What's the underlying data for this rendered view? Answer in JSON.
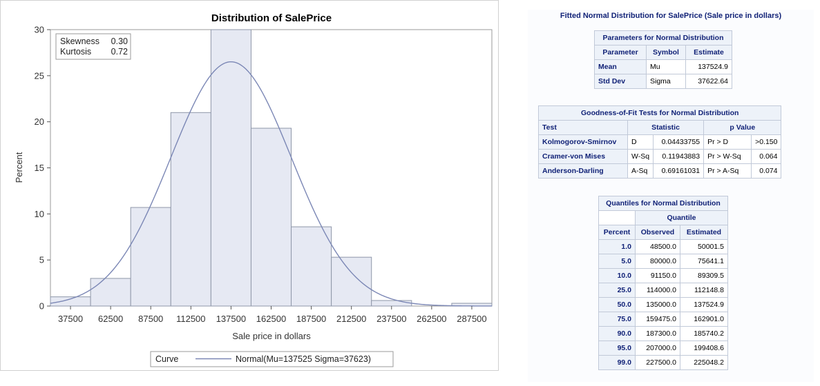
{
  "chart_data": {
    "type": "bar",
    "title": "Distribution of SalePrice",
    "xlabel": "Sale price in dollars",
    "ylabel": "Percent",
    "categories": [
      "37500",
      "62500",
      "87500",
      "112500",
      "137500",
      "162500",
      "187500",
      "212500",
      "237500",
      "262500",
      "287500"
    ],
    "x": [
      37500,
      62500,
      87500,
      112500,
      137500,
      162500,
      187500,
      212500,
      237500,
      262500,
      287500
    ],
    "bin_width": 25000,
    "values": [
      1.0,
      3.0,
      10.7,
      21.0,
      30.0,
      19.3,
      8.6,
      5.3,
      0.6,
      0.0,
      0.3
    ],
    "ylim": [
      0,
      30
    ],
    "yticks": [
      0,
      5,
      10,
      15,
      20,
      25,
      30
    ],
    "xlim": [
      25000,
      300000
    ],
    "grid": false,
    "normal_curve": {
      "mu": 137524.9,
      "sigma": 37622.64
    },
    "inset": {
      "rows": [
        {
          "label": "Skewness",
          "value": "0.30"
        },
        {
          "label": "Kurtosis",
          "value": "0.72"
        }
      ]
    },
    "legend": {
      "title": "Curve",
      "label": "Normal(Mu=137525 Sigma=37623)",
      "position": "bottom"
    },
    "colors": {
      "bar_fill": "#e6e9f3",
      "bar_stroke": "#8e96a8",
      "curve": "#7b87b5"
    }
  },
  "stats": {
    "title": "Fitted Normal Distribution for SalePrice (Sale price in dollars)",
    "parameters": {
      "caption": "Parameters for Normal Distribution",
      "headers": [
        "Parameter",
        "Symbol",
        "Estimate"
      ],
      "rows": [
        [
          "Mean",
          "Mu",
          "137524.9"
        ],
        [
          "Std Dev",
          "Sigma",
          "37622.64"
        ]
      ]
    },
    "gof": {
      "caption": "Goodness-of-Fit Tests for Normal Distribution",
      "headers": [
        "Test",
        "Statistic",
        "p Value"
      ],
      "rows": [
        [
          "Kolmogorov-Smirnov",
          "D",
          "0.04433755",
          "Pr > D",
          ">0.150"
        ],
        [
          "Cramer-von Mises",
          "W-Sq",
          "0.11943883",
          "Pr > W-Sq",
          "0.064"
        ],
        [
          "Anderson-Darling",
          "A-Sq",
          "0.69161031",
          "Pr > A-Sq",
          "0.074"
        ]
      ]
    },
    "quantiles": {
      "caption": "Quantiles for Normal Distribution",
      "group_header": "Quantile",
      "headers": [
        "Percent",
        "Observed",
        "Estimated"
      ],
      "rows": [
        [
          "1.0",
          "48500.0",
          "50001.5"
        ],
        [
          "5.0",
          "80000.0",
          "75641.1"
        ],
        [
          "10.0",
          "91150.0",
          "89309.5"
        ],
        [
          "25.0",
          "114000.0",
          "112148.8"
        ],
        [
          "50.0",
          "135000.0",
          "137524.9"
        ],
        [
          "75.0",
          "159475.0",
          "162901.0"
        ],
        [
          "90.0",
          "187300.0",
          "185740.2"
        ],
        [
          "95.0",
          "207000.0",
          "199408.6"
        ],
        [
          "99.0",
          "227500.0",
          "225048.2"
        ]
      ]
    }
  }
}
